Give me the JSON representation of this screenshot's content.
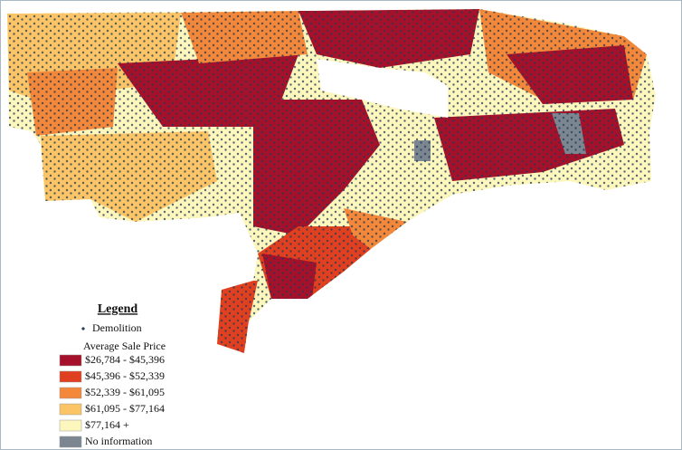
{
  "legend": {
    "title": "Legend",
    "point_label": "Demolition",
    "subtitle": "Average Sale Price",
    "items": [
      {
        "label": "$26,784 - $45,396",
        "color": "#a5112a"
      },
      {
        "label": "$45,396 - $52,339",
        "color": "#e0401f"
      },
      {
        "label": "$52,339 - $61,095",
        "color": "#f3873a"
      },
      {
        "label": "$61,095 - $77,164",
        "color": "#fbc466"
      },
      {
        "label": "$77,164 +",
        "color": "#fdf6bd"
      },
      {
        "label": "No information",
        "color": "#7b8691"
      }
    ]
  }
}
